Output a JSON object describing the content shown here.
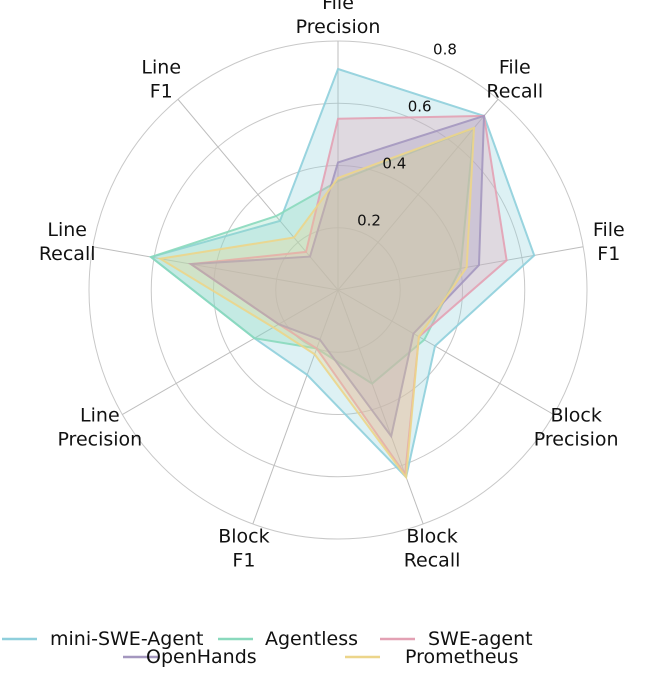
{
  "chart_data": {
    "type": "radar",
    "axes": [
      "File\nPrecision",
      "File\nRecall",
      "File\nF1",
      "Block\nPrecision",
      "Block\nRecall",
      "Block\nF1",
      "Line\nPrecision",
      "Line\nRecall",
      "Line\nF1"
    ],
    "rlim": [
      0,
      0.8
    ],
    "rticks": [
      "0.2",
      "0.4",
      "0.6",
      "0.8"
    ],
    "rtick_values": [
      0.2,
      0.4,
      0.6,
      0.8
    ],
    "grid": true,
    "legend_position": "bottom",
    "series": [
      {
        "name": "mini-SWE-Agent",
        "color": "#8fcfdc",
        "values": [
          0.71,
          0.73,
          0.64,
          0.36,
          0.64,
          0.29,
          0.31,
          0.61,
          0.29
        ]
      },
      {
        "name": "Agentless",
        "color": "#8ad9bd",
        "values": [
          0.35,
          0.68,
          0.4,
          0.32,
          0.32,
          0.2,
          0.31,
          0.61,
          0.31
        ]
      },
      {
        "name": "SWE-agent",
        "color": "#e3a1b4",
        "values": [
          0.55,
          0.73,
          0.55,
          0.3,
          0.63,
          0.2,
          0.22,
          0.48,
          0.16
        ]
      },
      {
        "name": "OpenHands",
        "color": "#a497bf",
        "values": [
          0.41,
          0.73,
          0.46,
          0.28,
          0.5,
          0.17,
          0.22,
          0.48,
          0.14
        ]
      },
      {
        "name": "Prometheus",
        "color": "#ecd58a",
        "values": [
          0.36,
          0.68,
          0.42,
          0.3,
          0.64,
          0.22,
          0.24,
          0.58,
          0.22
        ]
      }
    ]
  }
}
